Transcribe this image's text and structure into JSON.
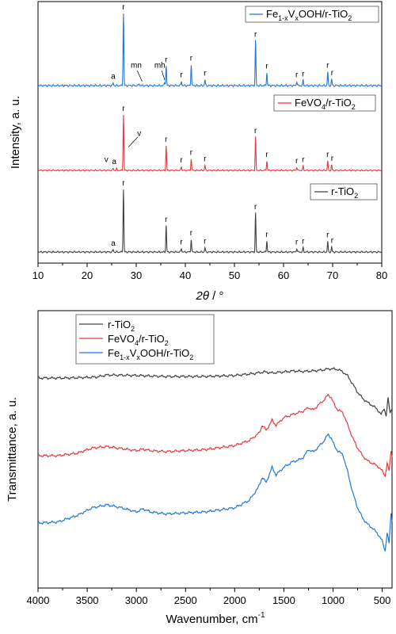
{
  "chart_data": [
    {
      "type": "line",
      "xlabel": "2θ / °",
      "ylabel": "Intensity, a. u.",
      "xlim": [
        10,
        80
      ],
      "xticks": [
        10,
        20,
        30,
        40,
        50,
        60,
        70,
        80
      ],
      "series": [
        {
          "name": "Fe1-xVxOOH/r-TiO2",
          "name_parts": [
            [
              "Fe",
              ""
            ],
            [
              "1-x",
              "sub"
            ],
            [
              "V",
              ""
            ],
            [
              "x",
              "sub"
            ],
            [
              "OOH/r-TiO",
              ""
            ],
            [
              "2",
              "sub"
            ]
          ],
          "color": "#1f77d8",
          "peaks": [
            {
              "x": 25.3,
              "h": 0.04
            },
            {
              "x": 27.4,
              "h": 1.0
            },
            {
              "x": 30.6,
              "h": 0.03
            },
            {
              "x": 35.8,
              "h": 0.05
            },
            {
              "x": 36.1,
              "h": 0.27
            },
            {
              "x": 39.2,
              "h": 0.06
            },
            {
              "x": 41.2,
              "h": 0.29
            },
            {
              "x": 44.0,
              "h": 0.08
            },
            {
              "x": 54.3,
              "h": 0.62
            },
            {
              "x": 56.6,
              "h": 0.18
            },
            {
              "x": 62.7,
              "h": 0.06
            },
            {
              "x": 64.0,
              "h": 0.07
            },
            {
              "x": 69.0,
              "h": 0.19
            },
            {
              "x": 69.8,
              "h": 0.09
            }
          ],
          "labels": [
            {
              "text": "a",
              "x": 25.3
            },
            {
              "text": "r",
              "x": 27.4
            },
            {
              "text": "mn",
              "x": 30.0
            },
            {
              "text": "mh",
              "x": 34.8
            },
            {
              "text": "r",
              "x": 36.1
            },
            {
              "text": "r",
              "x": 39.2
            },
            {
              "text": "r",
              "x": 41.2
            },
            {
              "text": "r",
              "x": 44.0
            },
            {
              "text": "r",
              "x": 54.3
            },
            {
              "text": "r",
              "x": 56.6
            },
            {
              "text": "r",
              "x": 62.7
            },
            {
              "text": "r",
              "x": 64.0
            },
            {
              "text": "r",
              "x": 69.0
            },
            {
              "text": "r",
              "x": 69.9
            }
          ]
        },
        {
          "name": "FeVO4/r-TiO2",
          "name_parts": [
            [
              "FeVO",
              ""
            ],
            [
              "4",
              "sub"
            ],
            [
              "/r-TiO",
              ""
            ],
            [
              "2",
              "sub"
            ]
          ],
          "color": "#e8383d",
          "peaks": [
            {
              "x": 25.3,
              "h": 0.04
            },
            {
              "x": 26.0,
              "h": 0.03
            },
            {
              "x": 27.4,
              "h": 1.0
            },
            {
              "x": 36.1,
              "h": 0.44
            },
            {
              "x": 39.2,
              "h": 0.07
            },
            {
              "x": 41.2,
              "h": 0.21
            },
            {
              "x": 44.0,
              "h": 0.09
            },
            {
              "x": 54.3,
              "h": 0.6
            },
            {
              "x": 56.6,
              "h": 0.17
            },
            {
              "x": 62.7,
              "h": 0.06
            },
            {
              "x": 64.0,
              "h": 0.08
            },
            {
              "x": 69.0,
              "h": 0.17
            },
            {
              "x": 69.8,
              "h": 0.1
            }
          ],
          "labels": [
            {
              "text": "v",
              "x": 23.9
            },
            {
              "text": "a",
              "x": 25.5
            },
            {
              "text": "r",
              "x": 27.4
            },
            {
              "text": "v",
              "x": 30.6
            },
            {
              "text": "r",
              "x": 36.1
            },
            {
              "text": "r",
              "x": 39.2
            },
            {
              "text": "r",
              "x": 41.2
            },
            {
              "text": "r",
              "x": 44.0
            },
            {
              "text": "r",
              "x": 54.3
            },
            {
              "text": "r",
              "x": 56.6
            },
            {
              "text": "r",
              "x": 62.7
            },
            {
              "text": "r",
              "x": 64.0
            },
            {
              "text": "r",
              "x": 69.0
            },
            {
              "text": "r",
              "x": 69.9
            }
          ]
        },
        {
          "name": "r-TiO2",
          "name_parts": [
            [
              "r-TiO",
              ""
            ],
            [
              "2",
              "sub"
            ]
          ],
          "color": "#404040",
          "peaks": [
            {
              "x": 25.3,
              "h": 0.04
            },
            {
              "x": 27.4,
              "h": 1.0
            },
            {
              "x": 36.1,
              "h": 0.42
            },
            {
              "x": 39.2,
              "h": 0.06
            },
            {
              "x": 41.2,
              "h": 0.2
            },
            {
              "x": 44.0,
              "h": 0.07
            },
            {
              "x": 54.3,
              "h": 0.62
            },
            {
              "x": 56.6,
              "h": 0.18
            },
            {
              "x": 62.7,
              "h": 0.06
            },
            {
              "x": 64.0,
              "h": 0.07
            },
            {
              "x": 69.0,
              "h": 0.17
            },
            {
              "x": 69.8,
              "h": 0.08
            }
          ],
          "labels": [
            {
              "text": "a",
              "x": 25.3
            },
            {
              "text": "r",
              "x": 27.4
            },
            {
              "text": "r",
              "x": 36.1
            },
            {
              "text": "r",
              "x": 39.2
            },
            {
              "text": "r",
              "x": 41.2
            },
            {
              "text": "r",
              "x": 44.0
            },
            {
              "text": "r",
              "x": 54.3
            },
            {
              "text": "r",
              "x": 56.6
            },
            {
              "text": "r",
              "x": 62.7
            },
            {
              "text": "r",
              "x": 64.0
            },
            {
              "text": "r",
              "x": 69.0
            },
            {
              "text": "r",
              "x": 69.9
            }
          ]
        }
      ]
    },
    {
      "type": "line",
      "xlabel": "Wavenumber, cm",
      "xlabel_sup": "-1",
      "ylabel": "Transmittance, a. u.",
      "xlim": [
        4000,
        400
      ],
      "x_reversed": true,
      "xticks": [
        4000,
        3500,
        3000,
        2500,
        2000,
        1500,
        1000,
        500
      ],
      "legend_position": "top-left",
      "series": [
        {
          "name": "r-TiO2",
          "name_parts": [
            [
              "r-TiO",
              ""
            ],
            [
              "2",
              "sub"
            ]
          ],
          "color": "#404040",
          "points": [
            [
              4000,
              0.0
            ],
            [
              3700,
              0.0
            ],
            [
              3400,
              0.002
            ],
            [
              3300,
              0.006
            ],
            [
              3000,
              0.005
            ],
            [
              2700,
              0.003
            ],
            [
              2300,
              0.003
            ],
            [
              2000,
              0.005
            ],
            [
              1800,
              0.009
            ],
            [
              1700,
              0.012
            ],
            [
              1620,
              0.01
            ],
            [
              1500,
              0.012
            ],
            [
              1400,
              0.014
            ],
            [
              1300,
              0.013
            ],
            [
              1200,
              0.014
            ],
            [
              1100,
              0.016
            ],
            [
              1050,
              0.018
            ],
            [
              1000,
              0.018
            ],
            [
              950,
              0.017
            ],
            [
              900,
              0.012
            ],
            [
              850,
              0.004
            ],
            [
              800,
              -0.012
            ],
            [
              750,
              -0.028
            ],
            [
              700,
              -0.04
            ],
            [
              650,
              -0.048
            ],
            [
              600,
              -0.054
            ],
            [
              550,
              -0.062
            ],
            [
              510,
              -0.072
            ],
            [
              480,
              -0.06
            ],
            [
              460,
              -0.074
            ],
            [
              440,
              -0.04
            ],
            [
              420,
              -0.07
            ],
            [
              405,
              -0.06
            ]
          ]
        },
        {
          "name": "FeVO4/r-TiO2",
          "name_parts": [
            [
              "FeVO",
              ""
            ],
            [
              "4",
              "sub"
            ],
            [
              "/r-TiO",
              ""
            ],
            [
              "2",
              "sub"
            ]
          ],
          "color": "#e8383d",
          "points": [
            [
              4000,
              0.0
            ],
            [
              3800,
              0.0
            ],
            [
              3600,
              0.005
            ],
            [
              3450,
              0.015
            ],
            [
              3300,
              0.018
            ],
            [
              3150,
              0.014
            ],
            [
              3000,
              0.01
            ],
            [
              2930,
              0.013
            ],
            [
              2860,
              0.01
            ],
            [
              2700,
              0.008
            ],
            [
              2300,
              0.012
            ],
            [
              2000,
              0.02
            ],
            [
              1850,
              0.03
            ],
            [
              1750,
              0.045
            ],
            [
              1720,
              0.06
            ],
            [
              1680,
              0.05
            ],
            [
              1620,
              0.07
            ],
            [
              1580,
              0.06
            ],
            [
              1500,
              0.075
            ],
            [
              1400,
              0.082
            ],
            [
              1300,
              0.088
            ],
            [
              1250,
              0.095
            ],
            [
              1200,
              0.09
            ],
            [
              1150,
              0.1
            ],
            [
              1100,
              0.108
            ],
            [
              1050,
              0.12
            ],
            [
              1020,
              0.115
            ],
            [
              980,
              0.098
            ],
            [
              950,
              0.09
            ],
            [
              900,
              0.085
            ],
            [
              850,
              0.06
            ],
            [
              800,
              0.035
            ],
            [
              750,
              0.015
            ],
            [
              700,
              0.0
            ],
            [
              650,
              -0.01
            ],
            [
              600,
              -0.015
            ],
            [
              550,
              -0.02
            ],
            [
              500,
              -0.03
            ],
            [
              470,
              -0.04
            ],
            [
              450,
              -0.015
            ],
            [
              430,
              -0.03
            ],
            [
              410,
              0.01
            ],
            [
              400,
              0.0
            ]
          ]
        },
        {
          "name": "Fe1-xVxOOH/r-TiO2",
          "name_parts": [
            [
              "Fe",
              ""
            ],
            [
              "1-x",
              "sub"
            ],
            [
              "V",
              ""
            ],
            [
              "x",
              "sub"
            ],
            [
              "OOH/r-TiO",
              ""
            ],
            [
              "2",
              "sub"
            ]
          ],
          "color": "#1f77d8",
          "points": [
            [
              4000,
              0.0
            ],
            [
              3800,
              0.002
            ],
            [
              3600,
              0.015
            ],
            [
              3450,
              0.03
            ],
            [
              3300,
              0.036
            ],
            [
              3150,
              0.03
            ],
            [
              3000,
              0.022
            ],
            [
              2930,
              0.028
            ],
            [
              2860,
              0.022
            ],
            [
              2700,
              0.018
            ],
            [
              2300,
              0.022
            ],
            [
              2000,
              0.03
            ],
            [
              1850,
              0.045
            ],
            [
              1760,
              0.07
            ],
            [
              1720,
              0.09
            ],
            [
              1680,
              0.08
            ],
            [
              1620,
              0.11
            ],
            [
              1580,
              0.095
            ],
            [
              1500,
              0.11
            ],
            [
              1420,
              0.12
            ],
            [
              1340,
              0.125
            ],
            [
              1300,
              0.13
            ],
            [
              1250,
              0.145
            ],
            [
              1200,
              0.14
            ],
            [
              1150,
              0.15
            ],
            [
              1100,
              0.16
            ],
            [
              1050,
              0.175
            ],
            [
              1020,
              0.168
            ],
            [
              980,
              0.15
            ],
            [
              950,
              0.142
            ],
            [
              900,
              0.135
            ],
            [
              850,
              0.1
            ],
            [
              800,
              0.06
            ],
            [
              750,
              0.03
            ],
            [
              700,
              0.01
            ],
            [
              650,
              -0.002
            ],
            [
              600,
              -0.01
            ],
            [
              550,
              -0.02
            ],
            [
              500,
              -0.035
            ],
            [
              470,
              -0.055
            ],
            [
              450,
              -0.02
            ],
            [
              430,
              -0.04
            ],
            [
              410,
              0.02
            ],
            [
              400,
              0.005
            ]
          ]
        }
      ]
    }
  ]
}
